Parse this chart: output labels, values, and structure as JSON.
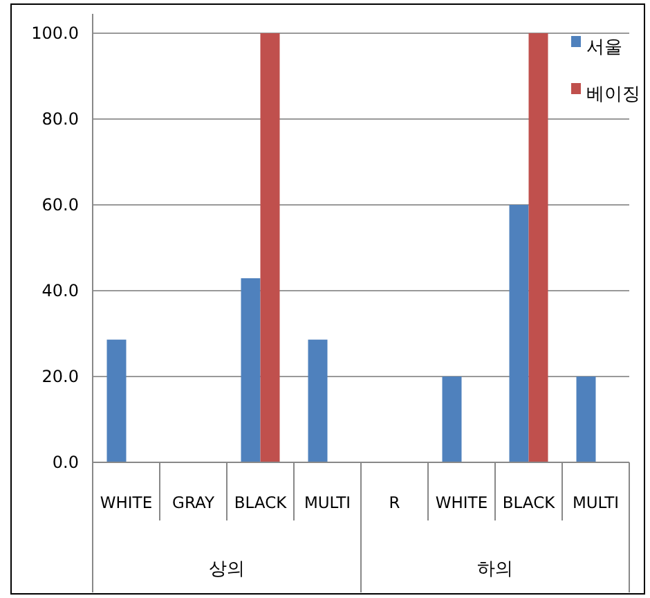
{
  "chart_data": {
    "type": "bar",
    "categories": [
      "WHITE",
      "GRAY",
      "BLACK",
      "MULTI",
      "R",
      "WHITE",
      "BLACK",
      "MULTI"
    ],
    "series": [
      {
        "name": "서울",
        "color": "#4f81bd",
        "values": [
          28.6,
          0,
          42.9,
          28.6,
          0,
          20,
          60,
          20
        ]
      },
      {
        "name": "베이징",
        "color": "#c0504d",
        "values": [
          0,
          0,
          100,
          0,
          0,
          0,
          100,
          0
        ]
      }
    ],
    "ylim": [
      0,
      100
    ],
    "yticks": [
      {
        "value": 0,
        "label": "0.0"
      },
      {
        "value": 20,
        "label": "20.0"
      },
      {
        "value": 40,
        "label": "40.0"
      },
      {
        "value": 60,
        "label": "60.0"
      },
      {
        "value": 80,
        "label": "80.0"
      },
      {
        "value": 100,
        "label": "100.0"
      }
    ],
    "grid": "y",
    "legend": "top right",
    "annotations": [
      "상의",
      "하의"
    ]
  }
}
